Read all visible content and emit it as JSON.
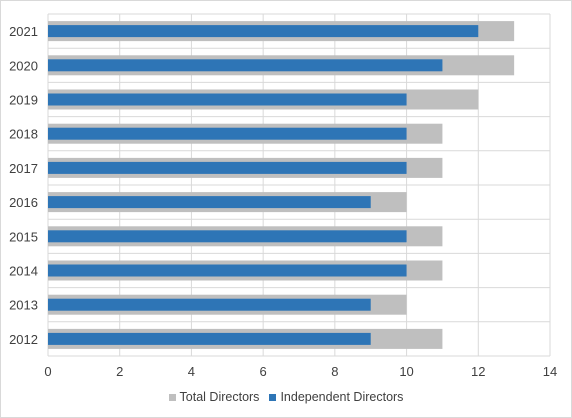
{
  "chart_data": {
    "type": "bar",
    "orientation": "horizontal",
    "categories": [
      "2021",
      "2020",
      "2019",
      "2018",
      "2017",
      "2016",
      "2015",
      "2014",
      "2013",
      "2012"
    ],
    "series": [
      {
        "name": "Total Directors",
        "color": "#bfbfbf",
        "values": [
          13,
          13,
          12,
          11,
          11,
          10,
          11,
          11,
          10,
          11
        ]
      },
      {
        "name": "Independent Directors",
        "color": "#2e75b6",
        "values": [
          12,
          11,
          10,
          10,
          10,
          9,
          10,
          10,
          9,
          9
        ]
      }
    ],
    "xlim": [
      0,
      14
    ],
    "xticks": [
      "0",
      "2",
      "4",
      "6",
      "8",
      "10",
      "12",
      "14"
    ],
    "grid": true,
    "legend_position": "bottom"
  }
}
